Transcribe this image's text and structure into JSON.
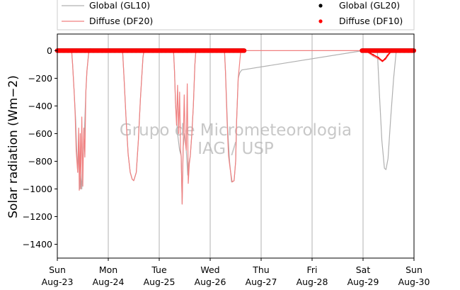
{
  "chart_data": {
    "type": "line",
    "title": "",
    "xlabel": "",
    "ylabel": "Solar radiation (Wm−2)",
    "ylim": [
      -1500,
      120
    ],
    "xlim": [
      0,
      7
    ],
    "x_unit": "days from Sun Aug-23 00:00",
    "yticks": [
      0,
      -200,
      -400,
      -600,
      -800,
      -1000,
      -1200,
      -1400
    ],
    "xticks": [
      {
        "x": 0,
        "day": "Sun",
        "date": "Aug-23"
      },
      {
        "x": 1,
        "day": "Mon",
        "date": "Aug-24"
      },
      {
        "x": 2,
        "day": "Tue",
        "date": "Aug-25"
      },
      {
        "x": 3,
        "day": "Wed",
        "date": "Aug-26"
      },
      {
        "x": 4,
        "day": "Thu",
        "date": "Aug-27"
      },
      {
        "x": 5,
        "day": "Fri",
        "date": "Aug-28"
      },
      {
        "x": 6,
        "day": "Sat",
        "date": "Aug-29"
      },
      {
        "x": 7,
        "day": "Sun",
        "date": "Aug-30"
      }
    ],
    "grid": "vertical",
    "legend_position": "top",
    "watermark": [
      "Grupo de Micrometeorologia",
      "IAG / USP"
    ],
    "series": [
      {
        "name": "Global (GL10)",
        "style": "line",
        "color": "#b0b0b0",
        "points": [
          [
            0,
            0
          ],
          [
            0.28,
            0
          ],
          [
            0.3,
            -100
          ],
          [
            0.33,
            -300
          ],
          [
            0.36,
            -500
          ],
          [
            0.38,
            -720
          ],
          [
            0.4,
            -880
          ],
          [
            0.42,
            -700
          ],
          [
            0.44,
            -1000
          ],
          [
            0.46,
            -900
          ],
          [
            0.48,
            -1000
          ],
          [
            0.5,
            -800
          ],
          [
            0.52,
            -700
          ],
          [
            0.54,
            -500
          ],
          [
            0.56,
            -300
          ],
          [
            0.58,
            -150
          ],
          [
            0.62,
            0
          ],
          [
            1.28,
            0
          ],
          [
            1.31,
            -200
          ],
          [
            1.35,
            -500
          ],
          [
            1.39,
            -750
          ],
          [
            1.43,
            -880
          ],
          [
            1.47,
            -930
          ],
          [
            1.5,
            -940
          ],
          [
            1.55,
            -880
          ],
          [
            1.59,
            -650
          ],
          [
            1.63,
            -350
          ],
          [
            1.68,
            -50
          ],
          [
            1.7,
            0
          ],
          [
            2.28,
            0
          ],
          [
            2.3,
            -150
          ],
          [
            2.32,
            -380
          ],
          [
            2.36,
            -600
          ],
          [
            2.4,
            -720
          ],
          [
            2.43,
            -760
          ],
          [
            2.45,
            -1110
          ],
          [
            2.47,
            -700
          ],
          [
            2.5,
            -600
          ],
          [
            2.53,
            -720
          ],
          [
            2.56,
            -900
          ],
          [
            2.58,
            -820
          ],
          [
            2.61,
            -760
          ],
          [
            2.64,
            -600
          ],
          [
            2.67,
            -400
          ],
          [
            2.7,
            -100
          ],
          [
            2.72,
            0
          ],
          [
            3.28,
            0
          ],
          [
            3.3,
            -150
          ],
          [
            3.34,
            -550
          ],
          [
            3.38,
            -800
          ],
          [
            3.42,
            -950
          ],
          [
            3.47,
            -940
          ],
          [
            3.5,
            -800
          ],
          [
            3.52,
            -500
          ],
          [
            3.55,
            -200
          ],
          [
            3.58,
            -160
          ],
          [
            3.62,
            -140
          ],
          [
            6.0,
            0
          ],
          [
            6.28,
            0
          ],
          [
            6.32,
            -300
          ],
          [
            6.37,
            -650
          ],
          [
            6.42,
            -850
          ],
          [
            6.45,
            -860
          ],
          [
            6.49,
            -780
          ],
          [
            6.54,
            -500
          ],
          [
            6.6,
            -200
          ],
          [
            6.65,
            -10
          ],
          [
            6.67,
            0
          ],
          [
            7,
            0
          ]
        ]
      },
      {
        "name": "Diffuse (DF20)",
        "style": "line",
        "color": "#f08080",
        "points": [
          [
            0,
            0
          ],
          [
            0.28,
            0
          ],
          [
            0.3,
            -100
          ],
          [
            0.33,
            -300
          ],
          [
            0.35,
            -460
          ],
          [
            0.37,
            -720
          ],
          [
            0.4,
            -880
          ],
          [
            0.42,
            -560
          ],
          [
            0.43,
            -1010
          ],
          [
            0.45,
            -600
          ],
          [
            0.46,
            -1000
          ],
          [
            0.48,
            -480
          ],
          [
            0.5,
            -980
          ],
          [
            0.52,
            -560
          ],
          [
            0.54,
            -770
          ],
          [
            0.56,
            -300
          ],
          [
            0.58,
            -150
          ],
          [
            0.62,
            0
          ],
          [
            1.28,
            0
          ],
          [
            1.31,
            -200
          ],
          [
            1.35,
            -500
          ],
          [
            1.39,
            -750
          ],
          [
            1.43,
            -880
          ],
          [
            1.47,
            -930
          ],
          [
            1.5,
            -940
          ],
          [
            1.55,
            -880
          ],
          [
            1.59,
            -650
          ],
          [
            1.63,
            -350
          ],
          [
            1.68,
            -50
          ],
          [
            1.7,
            0
          ],
          [
            2.28,
            0
          ],
          [
            2.3,
            -150
          ],
          [
            2.32,
            -380
          ],
          [
            2.34,
            -540
          ],
          [
            2.36,
            -250
          ],
          [
            2.38,
            -600
          ],
          [
            2.4,
            -300
          ],
          [
            2.42,
            -720
          ],
          [
            2.43,
            -760
          ],
          [
            2.45,
            -1110
          ],
          [
            2.47,
            -700
          ],
          [
            2.49,
            -320
          ],
          [
            2.51,
            -650
          ],
          [
            2.53,
            -720
          ],
          [
            2.55,
            -240
          ],
          [
            2.57,
            -960
          ],
          [
            2.59,
            -820
          ],
          [
            2.61,
            -760
          ],
          [
            2.64,
            -600
          ],
          [
            2.67,
            -400
          ],
          [
            2.7,
            -100
          ],
          [
            2.72,
            0
          ],
          [
            3.28,
            0
          ],
          [
            3.3,
            -150
          ],
          [
            3.33,
            -500
          ],
          [
            3.36,
            -760
          ],
          [
            3.39,
            -850
          ],
          [
            3.43,
            -950
          ],
          [
            3.47,
            -940
          ],
          [
            3.5,
            -800
          ],
          [
            3.52,
            -500
          ],
          [
            3.55,
            -200
          ],
          [
            3.58,
            -80
          ],
          [
            3.6,
            0
          ],
          [
            6.0,
            0
          ],
          [
            6.05,
            0
          ],
          [
            6.12,
            -20
          ],
          [
            6.2,
            -40
          ],
          [
            6.3,
            -60
          ],
          [
            6.38,
            -80
          ],
          [
            6.45,
            -60
          ],
          [
            6.5,
            -30
          ],
          [
            6.55,
            -10
          ],
          [
            6.6,
            0
          ],
          [
            7,
            0
          ]
        ]
      },
      {
        "name": "Global (GL20)",
        "style": "markers",
        "color": "#000000",
        "segments": [
          [
            0.0,
            3.68
          ],
          [
            5.98,
            7.0
          ]
        ],
        "value": 0
      },
      {
        "name": "Diffuse (DF10)",
        "style": "markers",
        "color": "#ff0000",
        "segments": [
          [
            0.0,
            3.68
          ],
          [
            5.98,
            7.0
          ]
        ],
        "value": 0,
        "dip": [
          [
            5.98,
            0
          ],
          [
            6.0,
            0
          ],
          [
            6.1,
            -10
          ],
          [
            6.2,
            -30
          ],
          [
            6.3,
            -50
          ],
          [
            6.38,
            -75
          ],
          [
            6.43,
            -60
          ],
          [
            6.48,
            -35
          ],
          [
            6.55,
            -5
          ],
          [
            6.6,
            0
          ]
        ]
      }
    ]
  },
  "colors": {
    "grid": "#b0b0b0",
    "axis": "#000000"
  }
}
